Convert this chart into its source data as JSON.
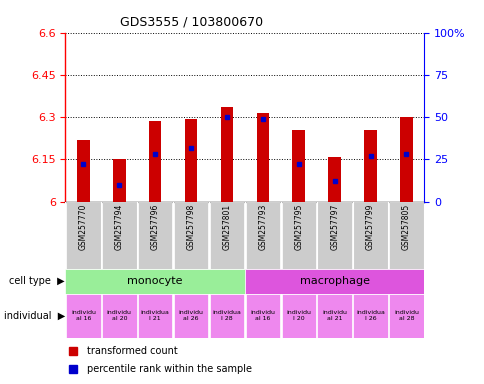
{
  "title": "GDS3555 / 103800670",
  "samples": [
    "GSM257770",
    "GSM257794",
    "GSM257796",
    "GSM257798",
    "GSM257801",
    "GSM257793",
    "GSM257795",
    "GSM257797",
    "GSM257799",
    "GSM257805"
  ],
  "transformed_counts": [
    6.22,
    6.15,
    6.285,
    6.295,
    6.335,
    6.315,
    6.255,
    6.16,
    6.255,
    6.3
  ],
  "percentile_ranks": [
    0.22,
    0.1,
    0.28,
    0.32,
    0.5,
    0.49,
    0.22,
    0.12,
    0.27,
    0.28
  ],
  "cell_types": [
    "monocyte",
    "monocyte",
    "monocyte",
    "monocyte",
    "monocyte",
    "macrophage",
    "macrophage",
    "macrophage",
    "macrophage",
    "macrophage"
  ],
  "individual_labels": [
    "individu\nal 16",
    "individu\nal 20",
    "individua\nl 21",
    "individu\nal 26",
    "individua\nl 28",
    "individu\nal 16",
    "individu\nl 20",
    "individu\nal 21",
    "individua\nl 26",
    "individu\nal 28"
  ],
  "ylim_left": [
    6.0,
    6.6
  ],
  "yticks_left": [
    6.0,
    6.15,
    6.3,
    6.45,
    6.6
  ],
  "yticks_left_labels": [
    "6",
    "6.15",
    "6.3",
    "6.45",
    "6.6"
  ],
  "yticks_right_vals": [
    0.0,
    0.25,
    0.5,
    0.75,
    1.0
  ],
  "yticks_right_labels": [
    "0",
    "25",
    "50",
    "75",
    "100%"
  ],
  "bar_color": "#cc0000",
  "dot_color": "#0000cc",
  "base_value": 6.0,
  "monocyte_color": "#99ee99",
  "macrophage_color": "#dd55dd",
  "individual_color": "#ee88ee",
  "sample_bg_color": "#cccccc",
  "legend_red": "transformed count",
  "legend_blue": "percentile rank within the sample",
  "fig_width": 4.85,
  "fig_height": 3.84,
  "dpi": 100
}
